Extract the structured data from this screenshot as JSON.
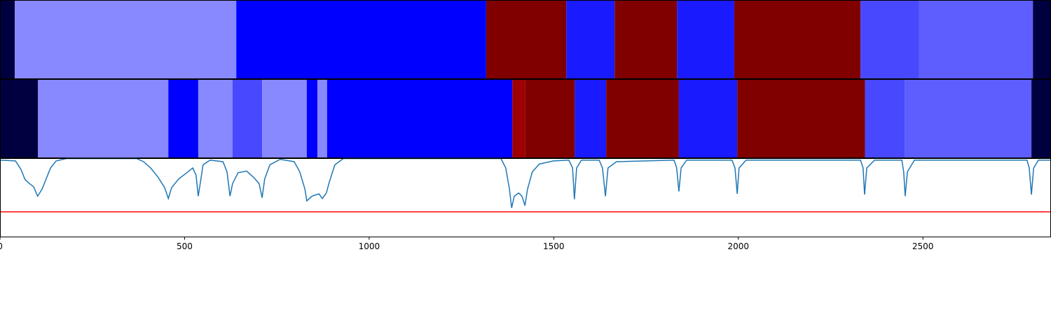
{
  "chart_data": {
    "type": "segmentation",
    "xlim": [
      0,
      2847
    ],
    "xticks": [
      0,
      500,
      1000,
      1500,
      2000,
      2500
    ],
    "ylim": [
      0,
      1
    ],
    "line_color": "#1f77b4",
    "hline": 0.32,
    "hline_color": "#ff0000",
    "segment_rows": [
      {
        "segments": [
          {
            "start": 0,
            "end": 40,
            "color": "#000040"
          },
          {
            "start": 40,
            "end": 640,
            "color": "#8888ff"
          },
          {
            "start": 640,
            "end": 1317,
            "color": "#0000ff"
          },
          {
            "start": 1317,
            "end": 1534,
            "color": "#800000"
          },
          {
            "start": 1534,
            "end": 1665,
            "color": "#1a1aff"
          },
          {
            "start": 1665,
            "end": 1834,
            "color": "#800000"
          },
          {
            "start": 1834,
            "end": 1989,
            "color": "#1a1aff"
          },
          {
            "start": 1989,
            "end": 2331,
            "color": "#800000"
          },
          {
            "start": 2331,
            "end": 2490,
            "color": "#4848ff"
          },
          {
            "start": 2490,
            "end": 2798,
            "color": "#5e5eff"
          },
          {
            "start": 2798,
            "end": 2847,
            "color": "#000040"
          }
        ]
      },
      {
        "segments": [
          {
            "start": 0,
            "end": 103,
            "color": "#000040"
          },
          {
            "start": 103,
            "end": 456,
            "color": "#8888ff"
          },
          {
            "start": 456,
            "end": 537,
            "color": "#0000ff"
          },
          {
            "start": 537,
            "end": 630,
            "color": "#8888ff"
          },
          {
            "start": 630,
            "end": 710,
            "color": "#4848ff"
          },
          {
            "start": 710,
            "end": 831,
            "color": "#8888ff"
          },
          {
            "start": 831,
            "end": 860,
            "color": "#0000ff"
          },
          {
            "start": 860,
            "end": 886,
            "color": "#8888ff"
          },
          {
            "start": 886,
            "end": 1388,
            "color": "#0000ff"
          },
          {
            "start": 1388,
            "end": 1422,
            "color": "#a00000"
          },
          {
            "start": 1422,
            "end": 1557,
            "color": "#800000"
          },
          {
            "start": 1557,
            "end": 1642,
            "color": "#1a1aff"
          },
          {
            "start": 1642,
            "end": 1839,
            "color": "#800000"
          },
          {
            "start": 1839,
            "end": 1997,
            "color": "#1a1aff"
          },
          {
            "start": 1997,
            "end": 2343,
            "color": "#800000"
          },
          {
            "start": 2343,
            "end": 2451,
            "color": "#4848ff"
          },
          {
            "start": 2451,
            "end": 2794,
            "color": "#5e5eff"
          },
          {
            "start": 2794,
            "end": 2847,
            "color": "#000040"
          }
        ]
      }
    ],
    "x": [
      0,
      42,
      57,
      68,
      80,
      91,
      102,
      114,
      125,
      137,
      152,
      180,
      370,
      389,
      408,
      427,
      446,
      456,
      465,
      484,
      509,
      522,
      531,
      537,
      543,
      550,
      569,
      604,
      615,
      623,
      630,
      645,
      668,
      687,
      702,
      710,
      717,
      731,
      759,
      797,
      812,
      826,
      831,
      845,
      864,
      873,
      884,
      892,
      907,
      930,
      1357,
      1370,
      1380,
      1386,
      1393,
      1405,
      1414,
      1422,
      1429,
      1442,
      1461,
      1499,
      1541,
      1551,
      1556,
      1562,
      1575,
      1623,
      1632,
      1640,
      1647,
      1670,
      1826,
      1833,
      1839,
      1845,
      1860,
      1983,
      1991,
      1997,
      2002,
      2021,
      2331,
      2338,
      2342,
      2348,
      2369,
      2443,
      2448,
      2452,
      2458,
      2477,
      2782,
      2788,
      2794,
      2800,
      2813,
      2847
    ],
    "values": [
      0.98,
      0.97,
      0.86,
      0.73,
      0.68,
      0.64,
      0.52,
      0.61,
      0.74,
      0.88,
      0.97,
      1.0,
      1.0,
      0.96,
      0.88,
      0.77,
      0.63,
      0.49,
      0.63,
      0.74,
      0.83,
      0.88,
      0.79,
      0.52,
      0.7,
      0.92,
      0.98,
      0.96,
      0.83,
      0.52,
      0.68,
      0.82,
      0.84,
      0.76,
      0.68,
      0.5,
      0.74,
      0.92,
      0.99,
      0.96,
      0.83,
      0.61,
      0.46,
      0.52,
      0.55,
      0.49,
      0.56,
      0.7,
      0.92,
      1.0,
      1.0,
      0.88,
      0.61,
      0.37,
      0.52,
      0.56,
      0.52,
      0.4,
      0.61,
      0.83,
      0.93,
      0.97,
      0.98,
      0.88,
      0.48,
      0.88,
      0.98,
      0.98,
      0.88,
      0.52,
      0.88,
      0.96,
      0.98,
      0.88,
      0.58,
      0.88,
      0.98,
      0.98,
      0.88,
      0.55,
      0.88,
      0.98,
      0.98,
      0.88,
      0.54,
      0.88,
      0.98,
      0.98,
      0.83,
      0.52,
      0.83,
      0.98,
      0.98,
      0.88,
      0.54,
      0.88,
      0.98,
      0.98
    ]
  }
}
